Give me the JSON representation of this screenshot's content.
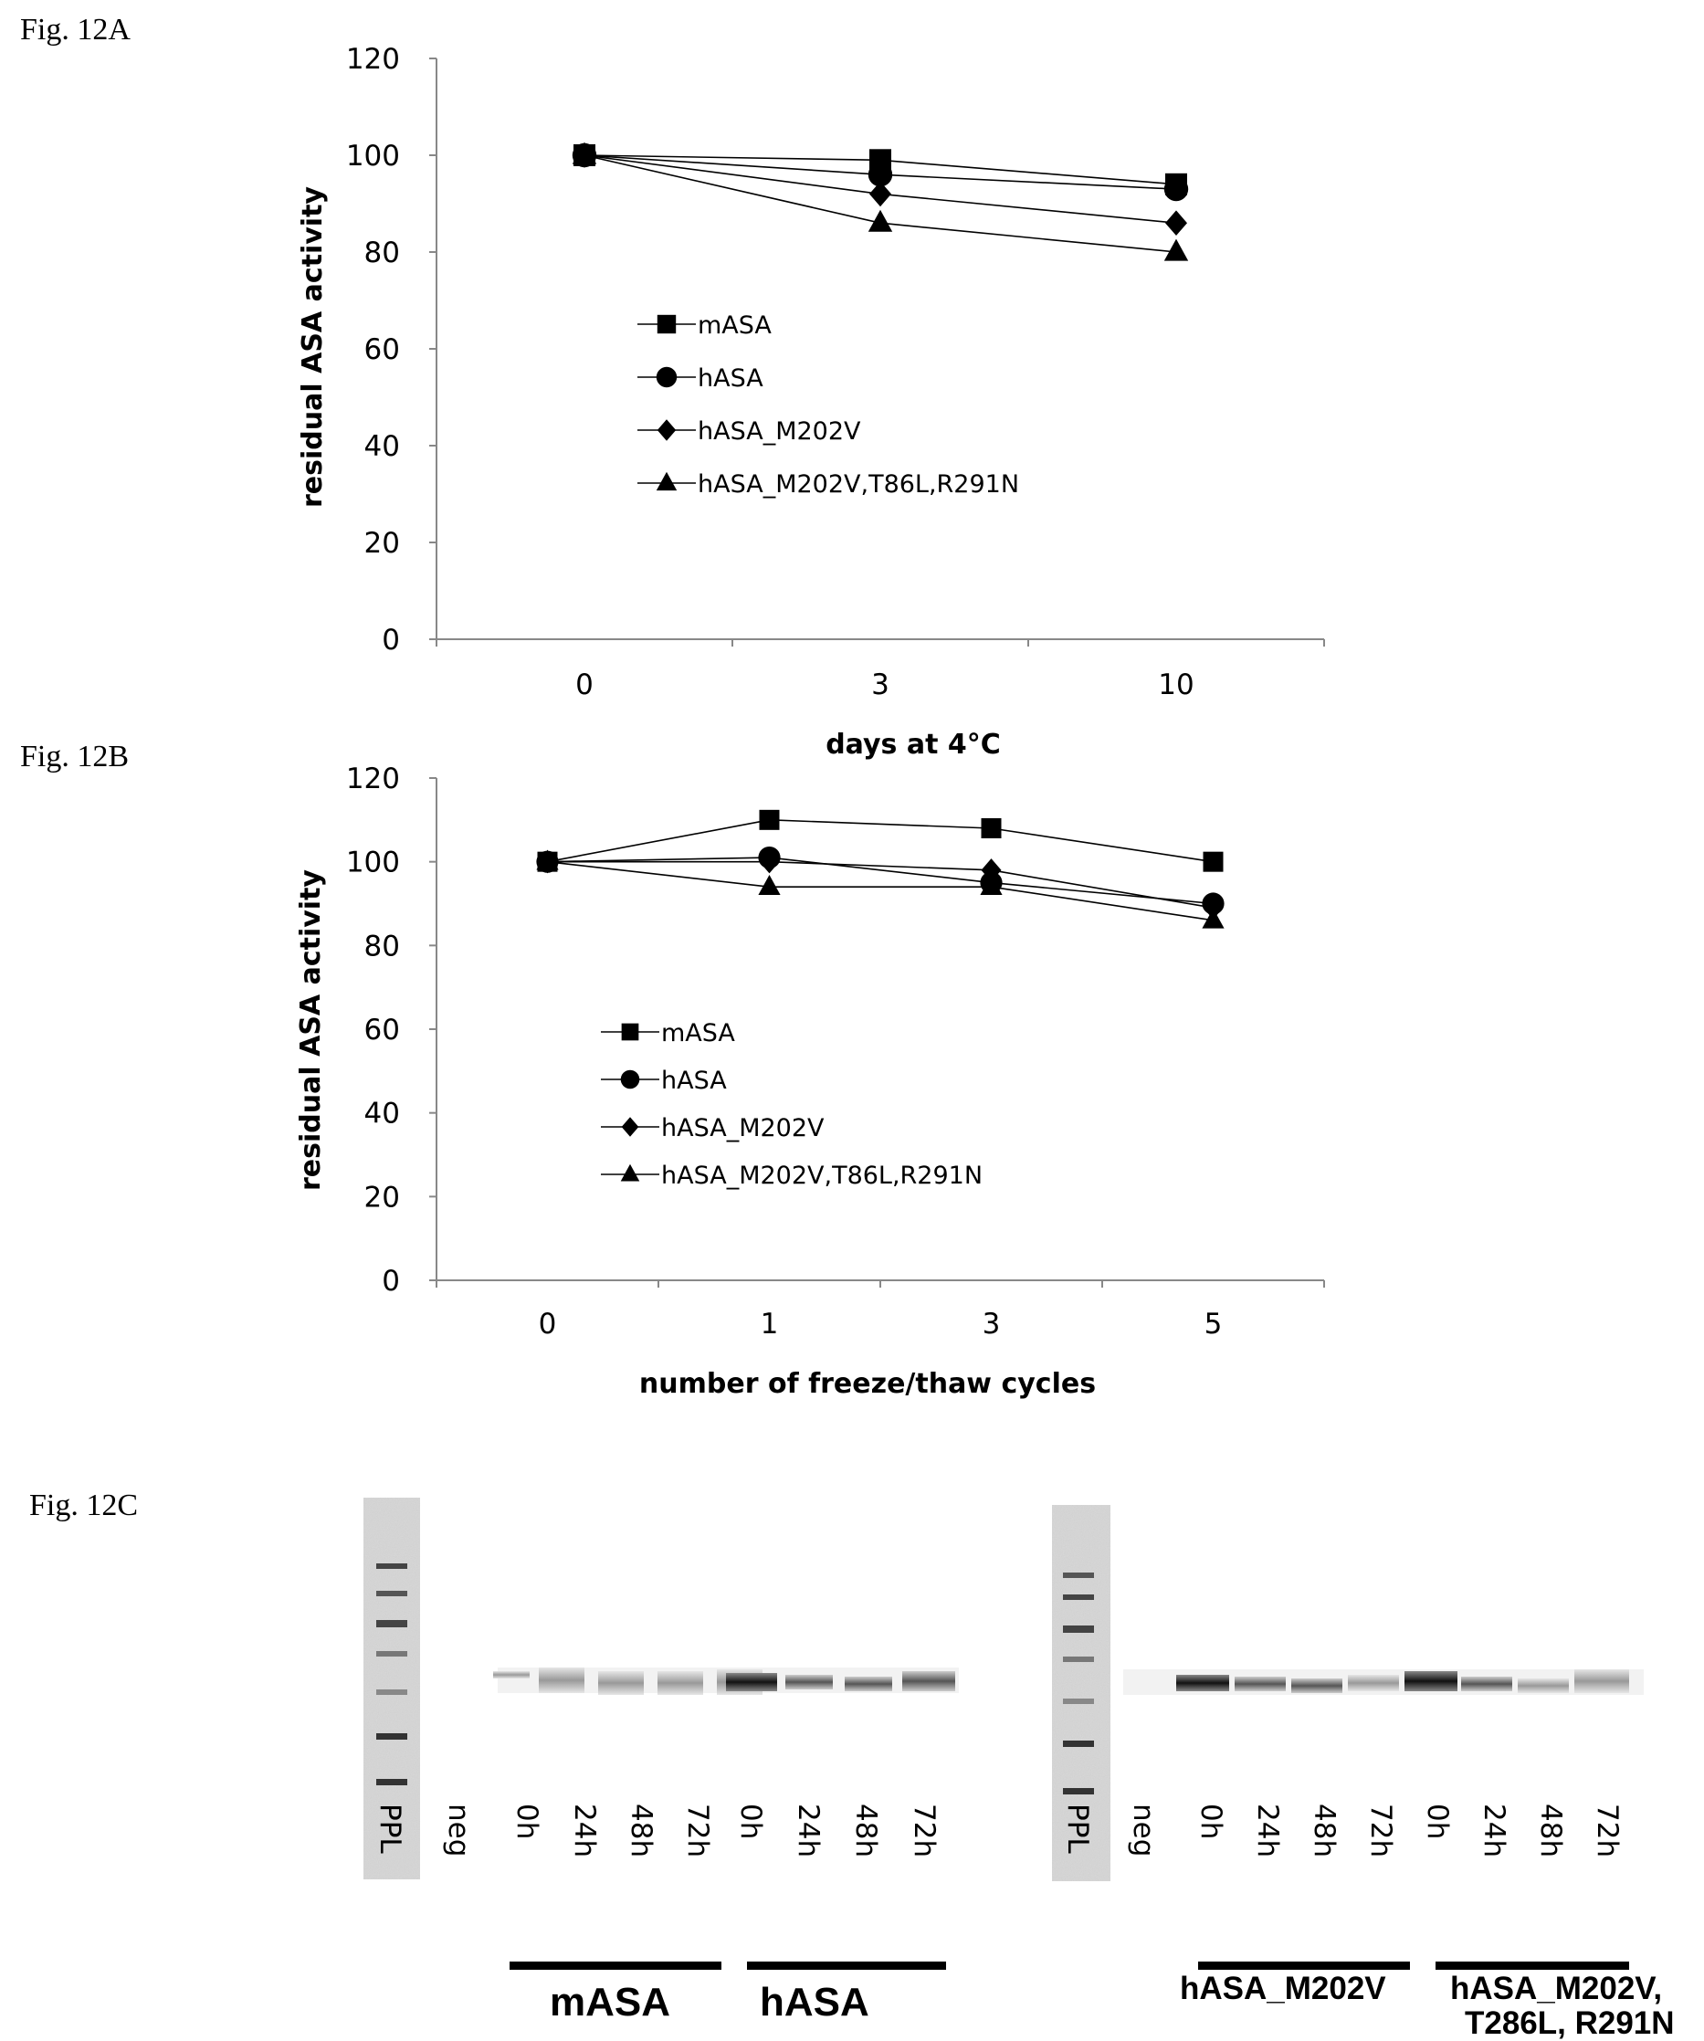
{
  "fig_labels": {
    "a": "Fig. 12A",
    "b": "Fig. 12B",
    "c": "Fig. 12C"
  },
  "chart_data": [
    {
      "type": "line",
      "title": "",
      "xlabel": "days at 4°C",
      "ylabel": "residual ASA activity",
      "categories": [
        "0",
        "3",
        "10"
      ],
      "ylim": [
        0,
        120
      ],
      "yticks": [
        "0",
        "20",
        "40",
        "60",
        "80",
        "100",
        "120"
      ],
      "legend_position": "center",
      "series": [
        {
          "name": "mASA",
          "marker": "square",
          "values": [
            100,
            99,
            94
          ]
        },
        {
          "name": "hASA",
          "marker": "circle",
          "values": [
            100,
            96,
            93
          ]
        },
        {
          "name": "hASA_M202V",
          "marker": "diamond",
          "values": [
            100,
            92,
            86
          ]
        },
        {
          "name": "hASA_M202V,T86L,R291N",
          "marker": "triangle",
          "values": [
            100,
            86,
            80
          ]
        }
      ]
    },
    {
      "type": "line",
      "title": "",
      "xlabel": "number of freeze/thaw cycles",
      "ylabel": "residual ASA activity",
      "categories": [
        "0",
        "1",
        "3",
        "5"
      ],
      "ylim": [
        0,
        120
      ],
      "yticks": [
        "0",
        "20",
        "40",
        "60",
        "80",
        "100",
        "120"
      ],
      "legend_position": "center-left",
      "series": [
        {
          "name": "mASA",
          "marker": "square",
          "values": [
            100,
            110,
            108,
            100
          ]
        },
        {
          "name": "hASA",
          "marker": "circle",
          "values": [
            100,
            101,
            95,
            90
          ]
        },
        {
          "name": "hASA_M202V",
          "marker": "diamond",
          "values": [
            100,
            100,
            98,
            89
          ]
        },
        {
          "name": "hASA_M202V,T86L,R291N",
          "marker": "triangle",
          "values": [
            100,
            94,
            94,
            86
          ]
        }
      ]
    }
  ],
  "gel": {
    "left": {
      "lanes": [
        "PPL",
        "neg",
        "0h",
        "24h",
        "48h",
        "72h",
        "0h",
        "24h",
        "48h",
        "72h"
      ],
      "groups": [
        "mASA",
        "hASA"
      ]
    },
    "right": {
      "lanes": [
        "PPL",
        "neg",
        "0h",
        "24h",
        "48h",
        "72h",
        "0h",
        "24h",
        "48h",
        "72h"
      ],
      "groups": [
        "hASA_M202V",
        "hASA_M202V,",
        "T286L, R291N"
      ]
    }
  }
}
